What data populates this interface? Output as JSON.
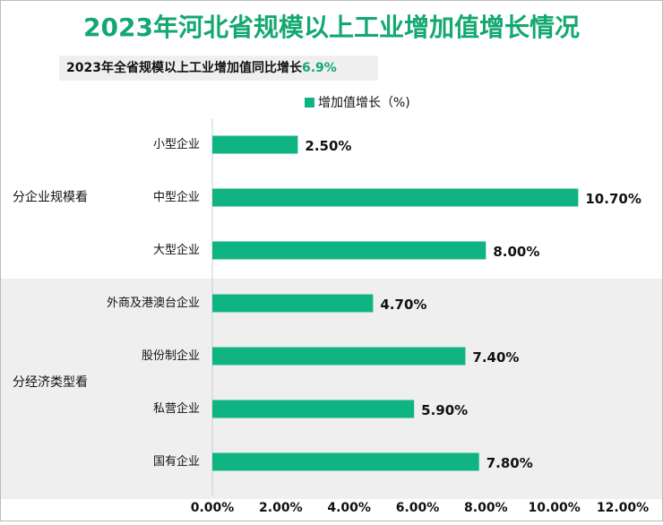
{
  "chart_data": {
    "type": "hbar",
    "title": "2023年河北省规模以上工业增加值增长情况",
    "subtitle": [
      "2023年全省规模以上工业增加值同比增长",
      "6.9%"
    ],
    "categories": [
      "小型企业",
      "中型企业",
      "大型企业",
      "外商及港澳台企业",
      "股份制企业",
      "私营企业",
      "国有企业"
    ],
    "groups": [
      {
        "name": "分企业规模看",
        "categories": [
          "小型企业",
          "中型企业",
          "大型企业"
        ]
      },
      {
        "name": "分经济类型看",
        "categories": [
          "外商及港澳台企业",
          "股份制企业",
          "私营企业",
          "国有企业"
        ]
      }
    ],
    "series": [
      {
        "name": "增加值增长（%)",
        "color": "#10b482",
        "values": [
          2.5,
          10.7,
          8.0,
          4.7,
          7.4,
          5.9,
          7.8
        ],
        "value_labels": [
          "2.50%",
          "10.70%",
          "8.00%",
          "4.70%",
          "7.40%",
          "5.90%",
          "7.80%"
        ]
      }
    ],
    "xlim": [
      0,
      12
    ],
    "xticks": [
      {
        "value": 0,
        "label": "0.00%"
      },
      {
        "value": 2,
        "label": "2.00%"
      },
      {
        "value": 4,
        "label": "4.00%"
      },
      {
        "value": 6,
        "label": "6.00%"
      },
      {
        "value": 8,
        "label": "8.00%"
      },
      {
        "value": 10,
        "label": "10.00%"
      },
      {
        "value": 12,
        "label": "12.00%"
      }
    ],
    "legend": "top"
  }
}
